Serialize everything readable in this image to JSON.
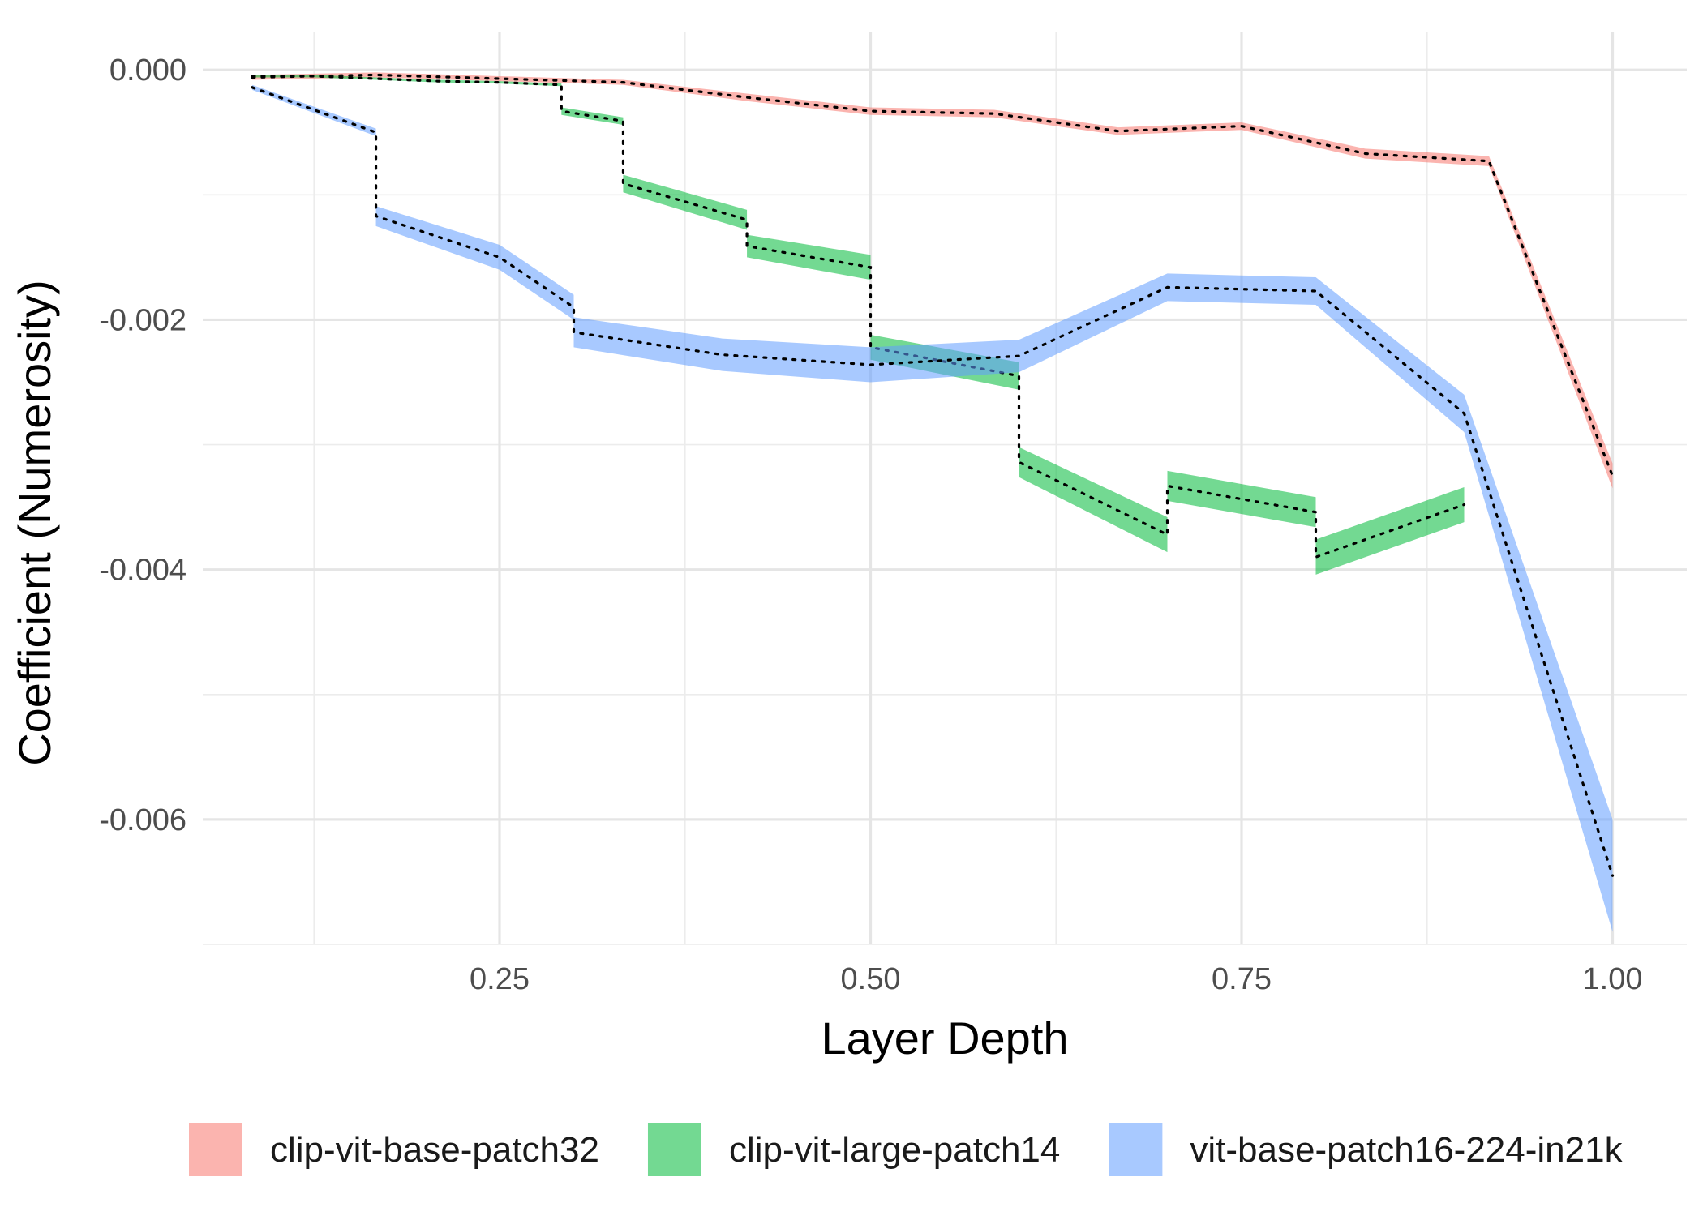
{
  "chart_data": {
    "type": "line",
    "title": "",
    "xlabel": "Layer Depth",
    "ylabel": "Coefficient (Numerosity)",
    "xlim": [
      0.05,
      1.05
    ],
    "ylim": [
      -0.007,
      0.0003
    ],
    "x_ticks": [
      0.25,
      0.5,
      0.75,
      1.0
    ],
    "x_tick_labels": [
      "0.25",
      "0.50",
      "0.75",
      "1.00"
    ],
    "y_ticks": [
      0.0,
      -0.002,
      -0.004,
      -0.006
    ],
    "y_tick_labels": [
      "0.000",
      "-0.002",
      "-0.004",
      "-0.006"
    ],
    "grid": true,
    "legend_position": "bottom",
    "series": [
      {
        "name": "clip-vit-base-patch32",
        "color": "#F8766D",
        "x": [
          0.0833,
          0.1667,
          0.25,
          0.3333,
          0.4167,
          0.5,
          0.5833,
          0.6667,
          0.75,
          0.8333,
          0.9167,
          1.0
        ],
        "y": [
          -6e-05,
          -4e-05,
          -7e-05,
          -0.0001,
          -0.00022,
          -0.00033,
          -0.00035,
          -0.00049,
          -0.00045,
          -0.00067,
          -0.00073,
          -0.00325
        ],
        "ymin": [
          -8e-05,
          -6e-05,
          -9e-05,
          -0.00012,
          -0.00025,
          -0.00036,
          -0.00038,
          -0.00052,
          -0.00048,
          -0.00071,
          -0.00077,
          -0.00335
        ],
        "ymax": [
          -4e-05,
          -2e-05,
          -5e-05,
          -8e-05,
          -0.00019,
          -0.0003,
          -0.00032,
          -0.00046,
          -0.00042,
          -0.00063,
          -0.00069,
          -0.00315
        ]
      },
      {
        "name": "clip-vit-large-patch14",
        "color": "#00BA38",
        "segments": [
          {
            "x": [
              0.0833,
              0.125,
              0.1667,
              0.2083
            ],
            "y": [
              -5e-05,
              -5e-05,
              -7e-05,
              -9e-05
            ],
            "ymin": [
              -6e-05,
              -6e-05,
              -8e-05,
              -0.0001
            ],
            "ymax": [
              -4e-05,
              -4e-05,
              -6e-05,
              -8e-05
            ]
          },
          {
            "x": [
              0.2083,
              0.25,
              0.2917
            ],
            "y": [
              -9e-05,
              -0.0001,
              -0.00012
            ],
            "ymin": [
              -0.0001,
              -0.00011,
              -0.00013
            ],
            "ymax": [
              -8e-05,
              -9e-05,
              -0.00011
            ]
          },
          {
            "x": [
              0.2917,
              0.3333
            ],
            "y": [
              -0.00033,
              -0.00041
            ],
            "ymin": [
              -0.00036,
              -0.00044
            ],
            "ymax": [
              -0.0003,
              -0.00038
            ]
          },
          {
            "x": [
              0.3333,
              0.4167
            ],
            "y": [
              -0.00091,
              -0.0012
            ],
            "ymin": [
              -0.00098,
              -0.00128
            ],
            "ymax": [
              -0.00084,
              -0.00112
            ]
          },
          {
            "x": [
              0.4167,
              0.5
            ],
            "y": [
              -0.00141,
              -0.00158
            ],
            "ymin": [
              -0.0015,
              -0.00168
            ],
            "ymax": [
              -0.00132,
              -0.00148
            ]
          },
          {
            "x": [
              0.5,
              0.6
            ],
            "y": [
              -0.00222,
              -0.00245
            ],
            "ymin": [
              -0.00232,
              -0.00256
            ],
            "ymax": [
              -0.00212,
              -0.00234
            ]
          },
          {
            "x": [
              0.6,
              0.7
            ],
            "y": [
              -0.00314,
              -0.00372
            ],
            "ymin": [
              -0.00326,
              -0.00386
            ],
            "ymax": [
              -0.00302,
              -0.00358
            ]
          },
          {
            "x": [
              0.7,
              0.8
            ],
            "y": [
              -0.00333,
              -0.00354
            ],
            "ymin": [
              -0.00345,
              -0.00366
            ],
            "ymax": [
              -0.00321,
              -0.00342
            ]
          },
          {
            "x": [
              0.8,
              0.9
            ],
            "y": [
              -0.0039,
              -0.00348
            ],
            "ymin": [
              -0.00404,
              -0.00362
            ],
            "ymax": [
              -0.00376,
              -0.00334
            ]
          }
        ]
      },
      {
        "name": "vit-base-patch16-224-in21k",
        "color": "#619CFF",
        "segments": [
          {
            "x": [
              0.0833,
              0.1667
            ],
            "y": [
              -0.00014,
              -0.0005
            ],
            "ymin": [
              -0.00016,
              -0.00053
            ],
            "ymax": [
              -0.00012,
              -0.00047
            ]
          },
          {
            "x": [
              0.1667,
              0.25,
              0.3
            ],
            "y": [
              -0.00117,
              -0.0015,
              -0.0019
            ],
            "ymin": [
              -0.00125,
              -0.0016,
              -0.002
            ],
            "ymax": [
              -0.00109,
              -0.0014,
              -0.0018
            ]
          },
          {
            "x": [
              0.3,
              0.4,
              0.5,
              0.6,
              0.7,
              0.8,
              0.9,
              1.0
            ],
            "y": [
              -0.0021,
              -0.00228,
              -0.00236,
              -0.00229,
              -0.00174,
              -0.00177,
              -0.00275,
              -0.00645
            ],
            "ymin": [
              -0.00222,
              -0.00241,
              -0.0025,
              -0.00242,
              -0.00185,
              -0.00188,
              -0.0029,
              -0.0069
            ],
            "ymax": [
              -0.00198,
              -0.00215,
              -0.00222,
              -0.00216,
              -0.00163,
              -0.00166,
              -0.0026,
              -0.006
            ]
          }
        ]
      }
    ]
  },
  "legend": {
    "items": [
      {
        "label": "clip-vit-base-patch32",
        "color": "#F8766D"
      },
      {
        "label": "clip-vit-large-patch14",
        "color": "#00BA38"
      },
      {
        "label": "vit-base-patch16-224-in21k",
        "color": "#619CFF"
      }
    ]
  }
}
